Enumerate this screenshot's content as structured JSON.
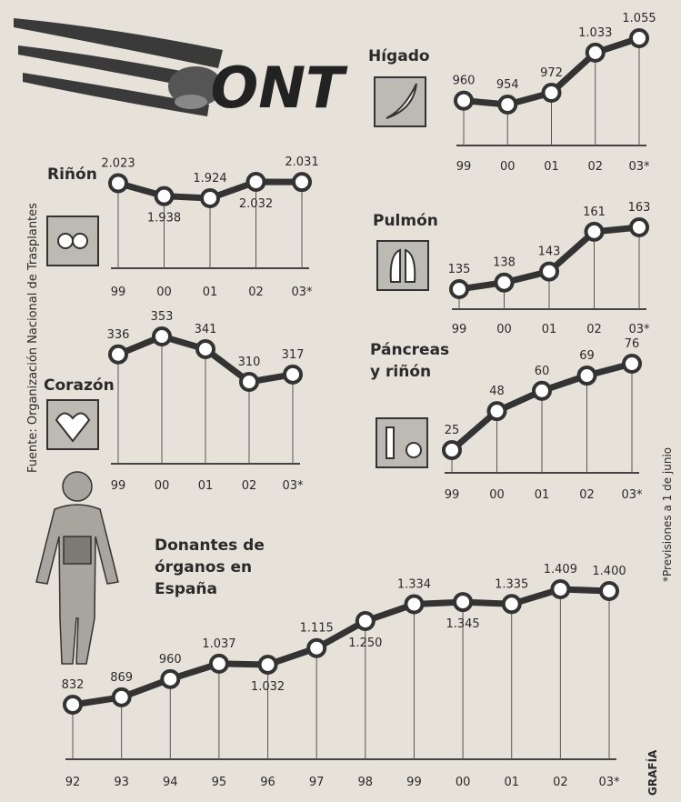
{
  "logo": "ONT",
  "source": "Fuente: Organización Nacional de Trasplantes",
  "footnote": "*Previsiones a 1 de junio",
  "credit": "GRAFÍA",
  "chart_data": [
    {
      "type": "line",
      "title": "Riñón",
      "categories": [
        "99",
        "00",
        "01",
        "02",
        "03*"
      ],
      "values": [
        2023,
        1938,
        1924,
        2032,
        2031
      ],
      "value_labels": [
        "2.023",
        "1.938",
        "1.924",
        "2.032",
        "2.031"
      ],
      "color": "#333333"
    },
    {
      "type": "line",
      "title": "Hígado",
      "categories": [
        "99",
        "00",
        "01",
        "02",
        "03*"
      ],
      "values": [
        960,
        954,
        972,
        1033,
        1055
      ],
      "value_labels": [
        "960",
        "954",
        "972",
        "1.033",
        "1.055"
      ],
      "color": "#333333"
    },
    {
      "type": "line",
      "title": "Pulmón",
      "categories": [
        "99",
        "00",
        "01",
        "02",
        "03*"
      ],
      "values": [
        135,
        138,
        143,
        161,
        163
      ],
      "color": "#333333"
    },
    {
      "type": "line",
      "title": "Corazón",
      "categories": [
        "99",
        "00",
        "01",
        "02",
        "03*"
      ],
      "values": [
        336,
        353,
        341,
        310,
        317
      ],
      "color": "#333333"
    },
    {
      "type": "line",
      "title": "Páncreas y riñón",
      "categories": [
        "99",
        "00",
        "01",
        "02",
        "03*"
      ],
      "values": [
        25,
        48,
        60,
        69,
        76
      ],
      "color": "#333333"
    },
    {
      "type": "line",
      "title": "Donantes de órganos en España",
      "categories": [
        "92",
        "93",
        "94",
        "95",
        "96",
        "97",
        "98",
        "99",
        "00",
        "01",
        "02",
        "03*"
      ],
      "values": [
        832,
        869,
        960,
        1037,
        1032,
        1115,
        1250,
        1334,
        1345,
        1335,
        1409,
        1400
      ],
      "value_labels": [
        "832",
        "869",
        "960",
        "1.037",
        "1.032",
        "1.115",
        "1.250",
        "1.334",
        "1.345",
        "1.335",
        "1.409",
        "1.400"
      ],
      "color": "#333333"
    }
  ]
}
